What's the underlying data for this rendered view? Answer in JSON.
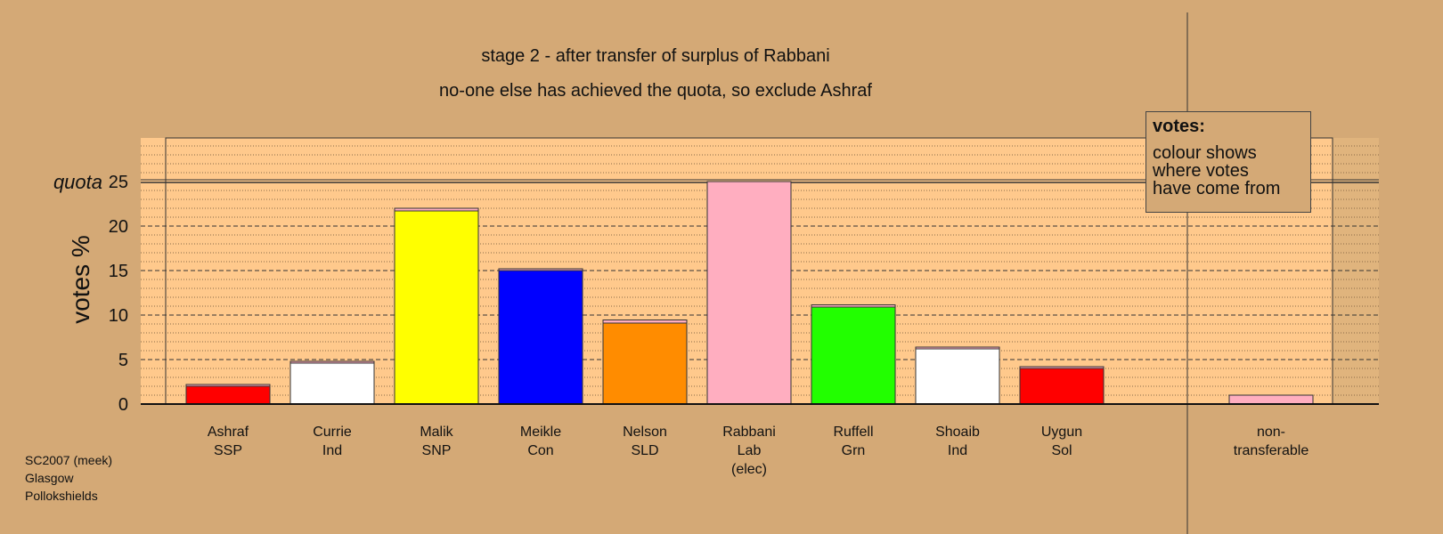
{
  "chart_data": {
    "type": "bar",
    "title": "stage 2 - after transfer of surplus of Rabbani",
    "subtitle": "no-one else has achieved the quota, so exclude Ashraf",
    "ylabel": "votes %",
    "ylim": [
      0,
      30
    ],
    "yticks": [
      0,
      5,
      10,
      15,
      20,
      25
    ],
    "quota": 25,
    "quota_label": "quota",
    "grid": true,
    "candidates": [
      {
        "name": "Ashraf",
        "party": "SSP",
        "note": "",
        "base": 2.0,
        "transfer": 0.02,
        "color": "#ff0000"
      },
      {
        "name": "Currie",
        "party": "Ind",
        "note": "",
        "base": 4.6,
        "transfer": 0.1,
        "color": "#ffffff"
      },
      {
        "name": "Malik",
        "party": "SNP",
        "note": "",
        "base": 21.7,
        "transfer": 0.3,
        "color": "#ffff00"
      },
      {
        "name": "Meikle",
        "party": "Con",
        "note": "",
        "base": 15.0,
        "transfer": 0.2,
        "color": "#0000ff"
      },
      {
        "name": "Nelson",
        "party": "SLD",
        "note": "",
        "base": 9.1,
        "transfer": 0.35,
        "color": "#ff8c00"
      },
      {
        "name": "Rabbani",
        "party": "Lab",
        "note": "(elec)",
        "base": 25.0,
        "transfer": 0,
        "color": "#ffaec0"
      },
      {
        "name": "Ruffell",
        "party": "Grn",
        "note": "",
        "base": 10.9,
        "transfer": 0.25,
        "color": "#22ff00"
      },
      {
        "name": "Shoaib",
        "party": "Ind",
        "note": "",
        "base": 6.2,
        "transfer": 0.2,
        "color": "#ffffff"
      },
      {
        "name": "Uygun",
        "party": "Sol",
        "note": "",
        "base": 4.0,
        "transfer": 0.1,
        "color": "#ff0000"
      }
    ],
    "nontransferable": {
      "label1": "non-",
      "label2": "transferable",
      "value": 1.0,
      "color": "#ffaec0"
    },
    "transfer_color": "#ffaec0",
    "legend_title": "votes:",
    "legend_lines": [
      "colour shows",
      "where votes",
      "have come from"
    ]
  },
  "source_lines": [
    "SC2007 (meek)",
    "Glasgow",
    "Pollokshields"
  ],
  "colors": {
    "background": "#d4a976",
    "plot_area": "#ffc98c",
    "axis": "#000000"
  }
}
